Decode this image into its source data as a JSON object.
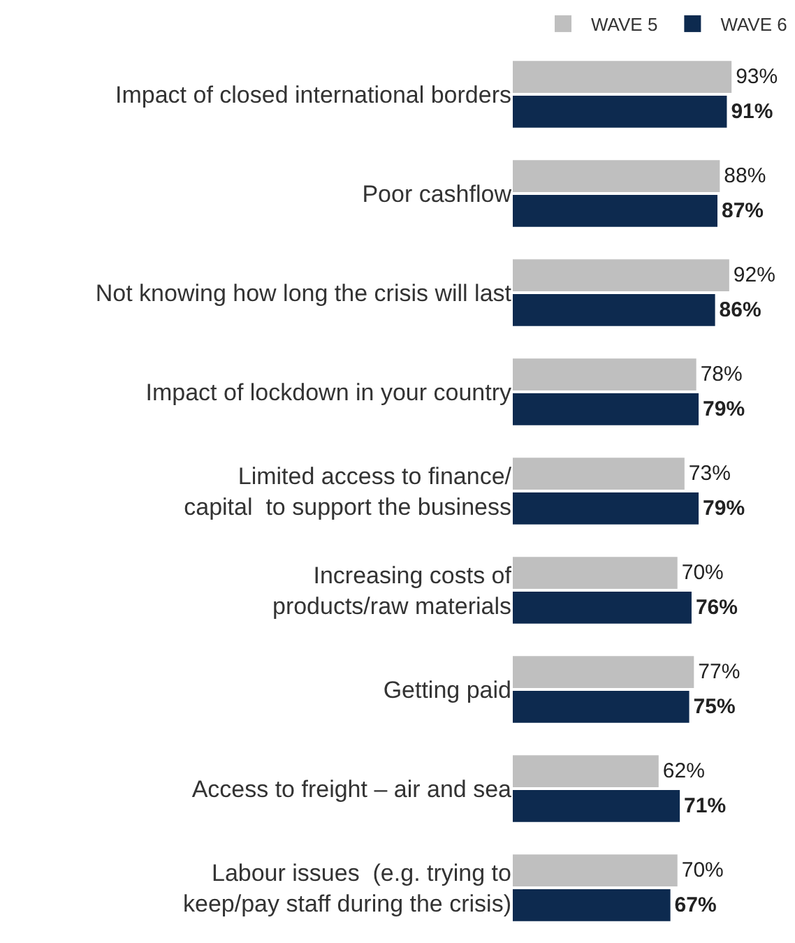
{
  "chart_data": {
    "type": "bar",
    "orientation": "horizontal",
    "legend": "top right",
    "categories": [
      "Impact of closed international borders",
      "Poor cashflow",
      "Not knowing how long the crisis will last",
      "Impact of lockdown in your country",
      "Limited access to finance/\ncapital  to support the business",
      "Increasing costs of\nproducts/raw materials",
      "Getting paid",
      "Access to freight – air and sea",
      "Labour issues  (e.g. trying to\nkeep/pay staff during the crisis)"
    ],
    "series": [
      {
        "name": "WAVE 5",
        "color": "#bfbfbf",
        "values": [
          93,
          88,
          92,
          78,
          73,
          70,
          77,
          62,
          70
        ],
        "value_labels": [
          "93%",
          "88%",
          "92%",
          "78%",
          "73%",
          "70%",
          "77%",
          "62%",
          "70%"
        ]
      },
      {
        "name": "WAVE 6",
        "color": "#0d2a4f",
        "values": [
          91,
          87,
          86,
          79,
          79,
          76,
          75,
          71,
          67
        ],
        "value_labels": [
          "91%",
          "87%",
          "86%",
          "79%",
          "79%",
          "76%",
          "75%",
          "71%",
          "67%"
        ]
      }
    ]
  }
}
